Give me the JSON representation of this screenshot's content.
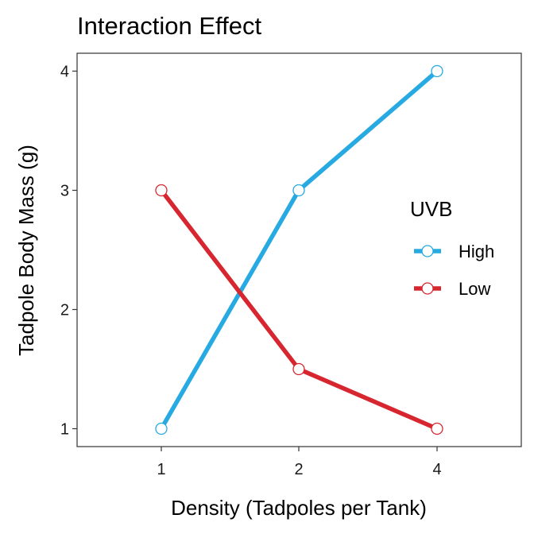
{
  "chart_data": {
    "type": "line",
    "title": "Interaction Effect",
    "xlabel": "Density (Tadpoles per Tank)",
    "ylabel": "Tadpole Body Mass (g)",
    "categories": [
      "1",
      "2",
      "4"
    ],
    "yticks": [
      1,
      2,
      3,
      4
    ],
    "ylim": [
      0.85,
      4.15
    ],
    "grid": false,
    "legend": {
      "title": "UVB",
      "position": "right-inside"
    },
    "series": [
      {
        "name": "High",
        "color": "#27aae1",
        "values": [
          1,
          3,
          4
        ]
      },
      {
        "name": "Low",
        "color": "#d7262f",
        "values": [
          3,
          1.5,
          1
        ]
      }
    ]
  }
}
